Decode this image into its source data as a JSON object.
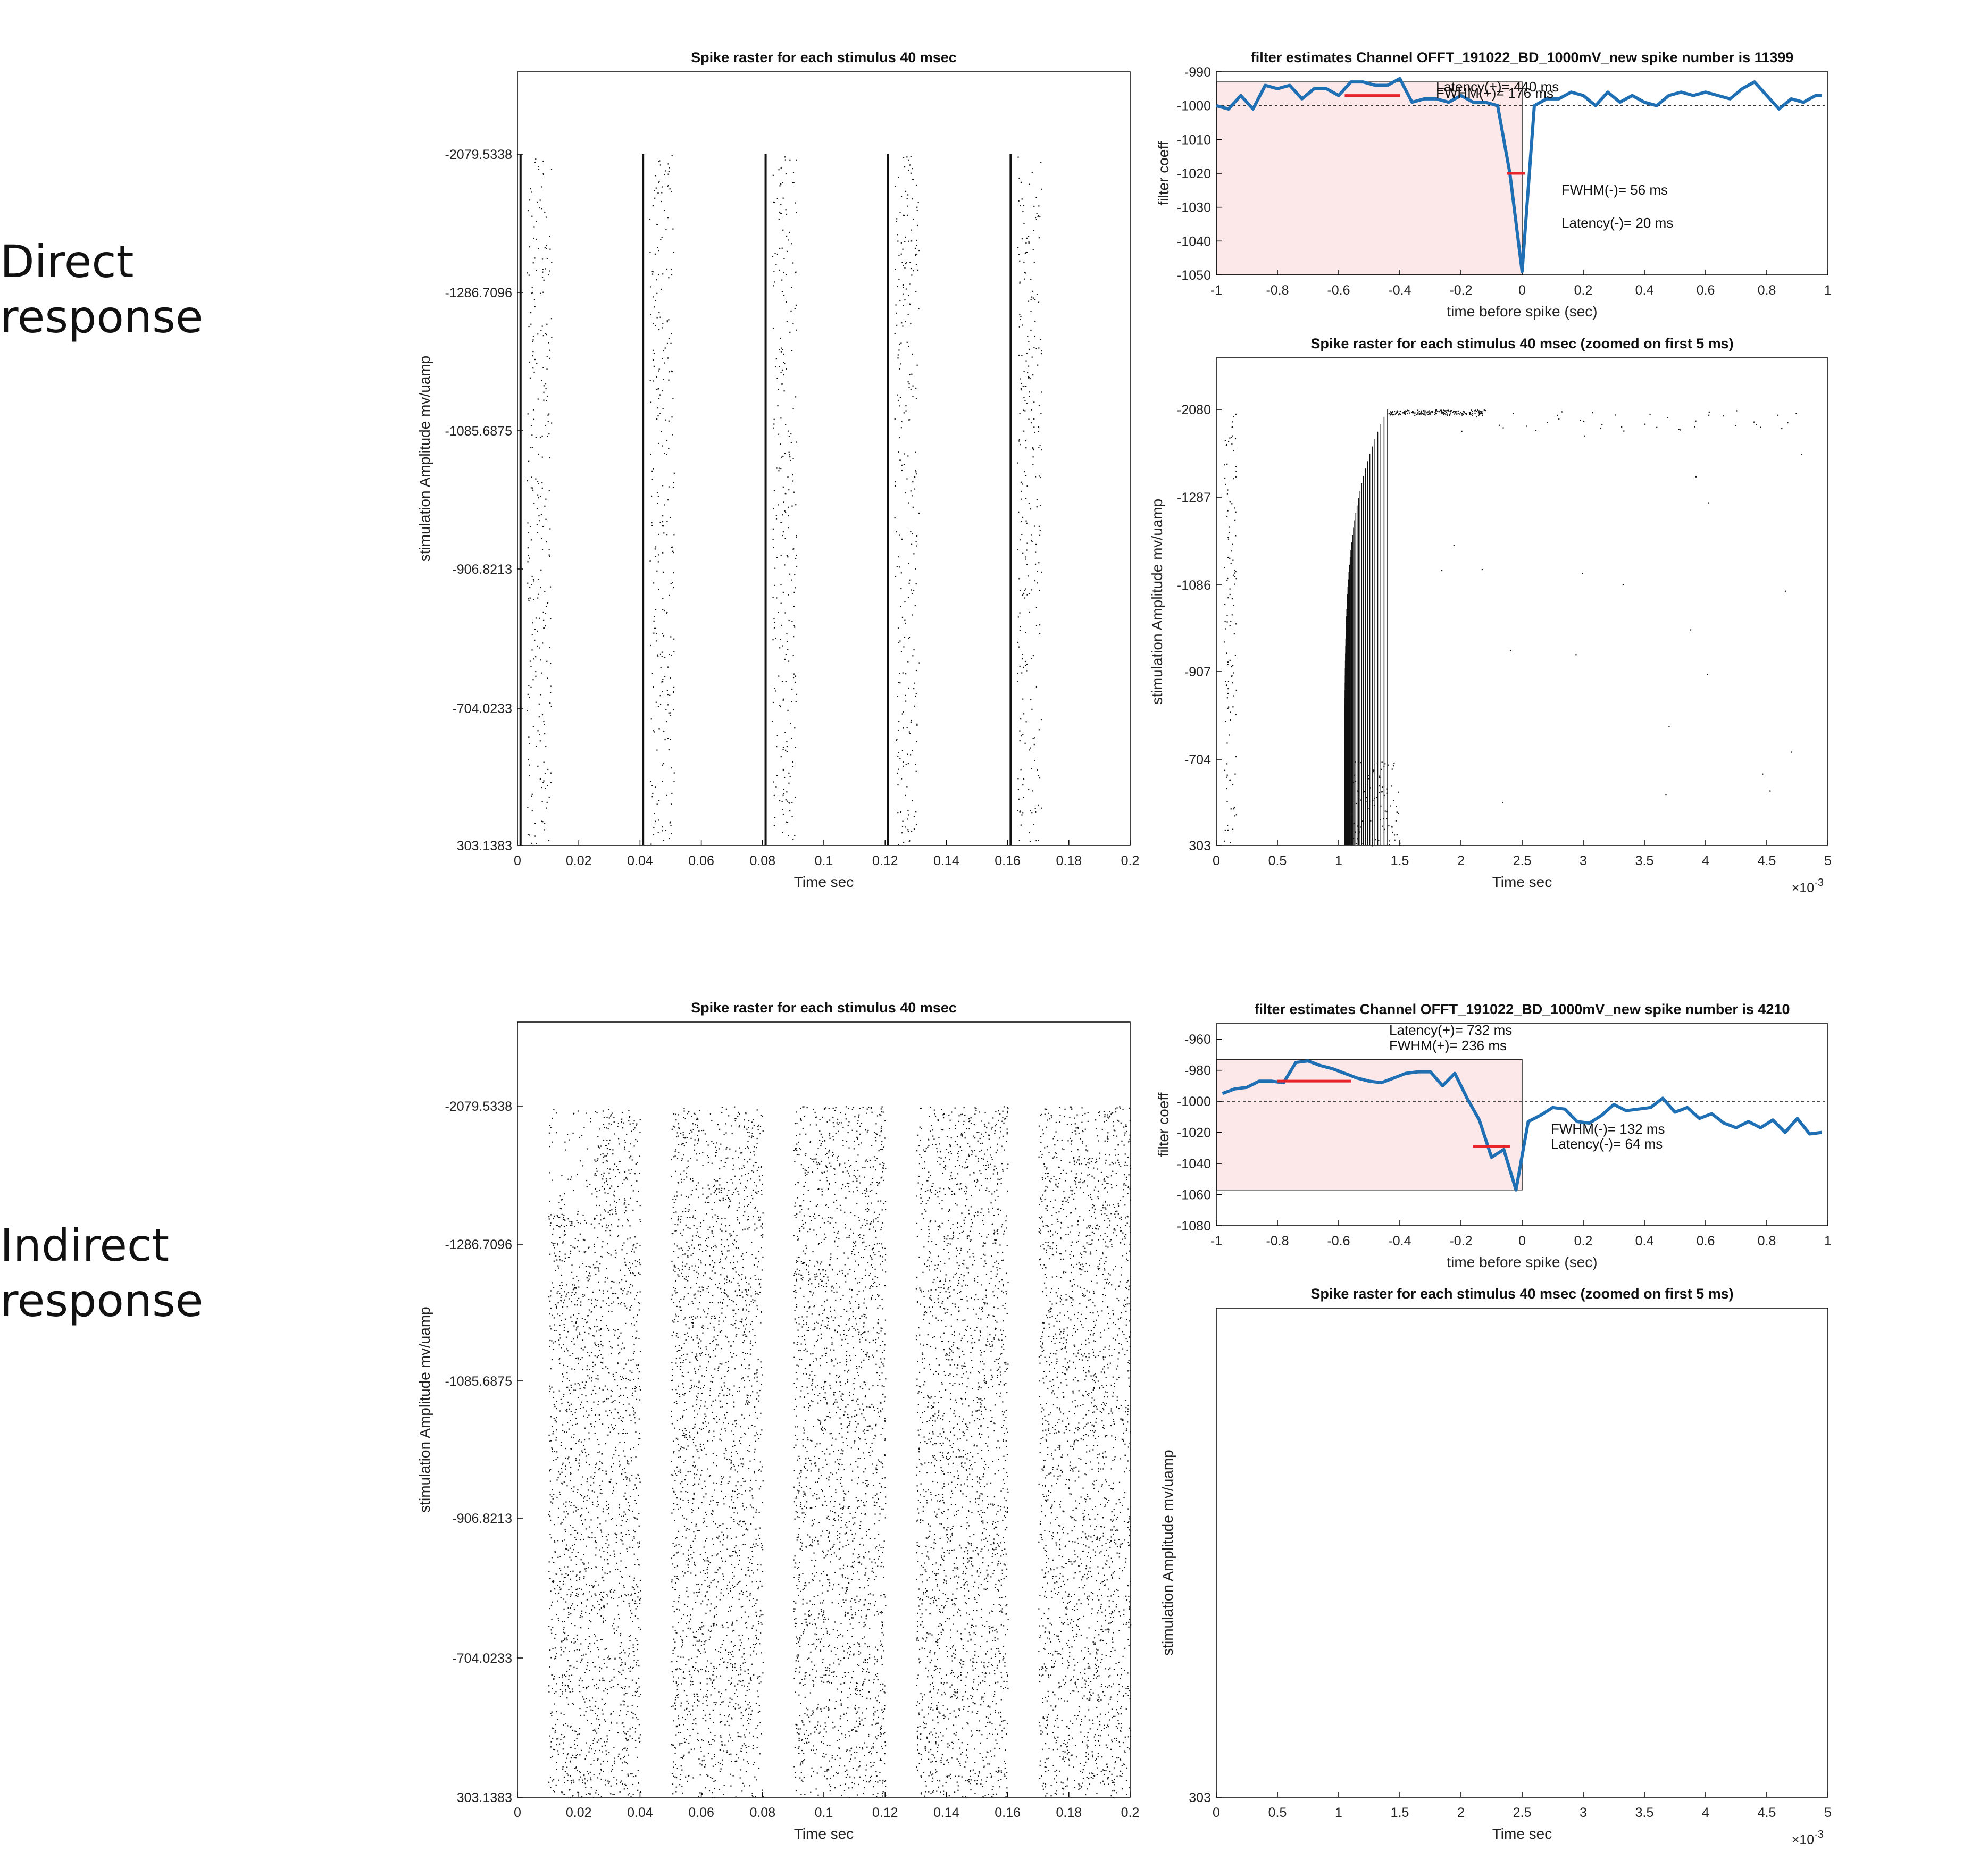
{
  "row_labels": {
    "direct": "Direct\nresponse",
    "indirect": "Indirect\nresponse"
  },
  "colors": {
    "filter_line": "#1f6fb4",
    "fwhm_bar": "#e8242b",
    "shade": "#fce8e8",
    "spike": "#111111"
  },
  "chart_data": [
    {
      "id": "direct-raster",
      "type": "scatter",
      "title": "Spike raster for each stimulus 40 msec",
      "xlabel": "Time sec",
      "ylabel": "stimulation Amplitude  mv/uamp",
      "xlim": [
        0,
        0.2
      ],
      "x_ticks": [
        0,
        0.02,
        0.04,
        0.06,
        0.08,
        0.1,
        0.12,
        0.14,
        0.16,
        0.18,
        0.2
      ],
      "x_tick_labels": [
        "0",
        "0.02",
        "0.04",
        "0.06",
        "0.08",
        "0.1",
        "0.12",
        "0.14",
        "0.16",
        "0.18",
        "0.2"
      ],
      "y_tick_labels": [
        "-2079.5338",
        "-1286.7096",
        "-1085.6875",
        "-906.8213",
        "-704.0233",
        "303.1383"
      ],
      "stimulus_onsets_sec": [
        0,
        0.04,
        0.08,
        0.12,
        0.16
      ],
      "response": "direct",
      "spike_latency_sec": 0.001
    },
    {
      "id": "direct-filter",
      "type": "line",
      "title": "filter estimates  Channel  OFFT_191022_BD_1000mV_new  spike number is 11399",
      "xlabel": "time before spike (sec)",
      "ylabel": "filter coeff",
      "xlim": [
        -1,
        1
      ],
      "ylim": [
        -1050,
        -990
      ],
      "x_ticks": [
        -1,
        -0.8,
        -0.6,
        -0.4,
        -0.2,
        0,
        0.2,
        0.4,
        0.6,
        0.8,
        1
      ],
      "x_tick_labels": [
        "-1",
        "-0.8",
        "-0.6",
        "-0.4",
        "-0.2",
        "0",
        "0.2",
        "0.4",
        "0.6",
        "0.8",
        "1"
      ],
      "y_ticks": [
        -990,
        -1000,
        -1010,
        -1020,
        -1030,
        -1040,
        -1050
      ],
      "y_tick_labels": [
        "-990",
        "-1000",
        "-1010",
        "-1020",
        "-1030",
        "-1040",
        "-1050"
      ],
      "baseline": -1000,
      "shade_x": [
        -1,
        0
      ],
      "shade_y": [
        -1050,
        -993
      ],
      "x": [
        -1,
        -0.96,
        -0.92,
        -0.88,
        -0.84,
        -0.8,
        -0.76,
        -0.72,
        -0.68,
        -0.64,
        -0.6,
        -0.56,
        -0.52,
        -0.48,
        -0.44,
        -0.4,
        -0.36,
        -0.32,
        -0.28,
        -0.24,
        -0.2,
        -0.16,
        -0.12,
        -0.08,
        -0.04,
        0,
        0.04,
        0.08,
        0.12,
        0.16,
        0.2,
        0.24,
        0.28,
        0.32,
        0.36,
        0.4,
        0.44,
        0.48,
        0.52,
        0.56,
        0.6,
        0.64,
        0.68,
        0.72,
        0.76,
        0.8,
        0.84,
        0.88,
        0.92,
        0.96,
        0.98
      ],
      "y": [
        -1000,
        -1001,
        -997,
        -1001,
        -994,
        -995,
        -994,
        -998,
        -995,
        -995,
        -997,
        -993,
        -993,
        -994,
        -994,
        -992,
        -999,
        -998,
        -998,
        -999,
        -997,
        -999,
        -999,
        -1000,
        -1020,
        -1049,
        -1000,
        -998,
        -998,
        -996,
        -997,
        -1000,
        -996,
        -999,
        -997,
        -999,
        -1000,
        -997,
        -996,
        -997,
        -996,
        -997,
        -998,
        -995,
        -993,
        -997,
        -1001,
        -998,
        -999,
        -997,
        -997
      ],
      "fwhm_pos": {
        "x": [
          -0.58,
          -0.4
        ],
        "y": -997
      },
      "fwhm_neg": {
        "x": [
          -0.05,
          0.01
        ],
        "y": -1020
      },
      "annotations": [
        "Latency(+)= 440 ms",
        "FWHM(+)= 176 ms",
        "FWHM(-)= 56 ms",
        "Latency(-)= 20 ms"
      ]
    },
    {
      "id": "direct-zoom",
      "type": "scatter",
      "title": "Spike raster for each stimulus 40 msec (zoomed on first 5 ms)",
      "xlabel": "Time sec",
      "ylabel": "stimulation Amplitude  mv/uamp",
      "xlim": [
        0,
        0.005
      ],
      "x_ticks": [
        0,
        0.0005,
        0.001,
        0.0015,
        0.002,
        0.0025,
        0.003,
        0.0035,
        0.004,
        0.0045,
        0.005
      ],
      "x_tick_labels": [
        "0",
        "0.5",
        "1",
        "1.5",
        "2",
        "2.5",
        "3",
        "3.5",
        "4",
        "4.5",
        "5"
      ],
      "x_exponent": "×10",
      "x_exponent_power": "-3",
      "y_tick_labels": [
        "-2080",
        "-1287",
        "-1086",
        "-907",
        "-704",
        "303"
      ],
      "onset_latency_sec": 0.00105
    },
    {
      "id": "indirect-raster",
      "type": "scatter",
      "title": "Spike raster for each stimulus 40 msec",
      "xlabel": "Time sec",
      "ylabel": "stimulation Amplitude  mv/uamp",
      "xlim": [
        0,
        0.2
      ],
      "x_ticks": [
        0,
        0.02,
        0.04,
        0.06,
        0.08,
        0.1,
        0.12,
        0.14,
        0.16,
        0.18,
        0.2
      ],
      "x_tick_labels": [
        "0",
        "0.02",
        "0.04",
        "0.06",
        "0.08",
        "0.1",
        "0.12",
        "0.14",
        "0.16",
        "0.18",
        "0.2"
      ],
      "y_tick_labels": [
        "-2079.5338",
        "-1286.7096",
        "-1085.6875",
        "-906.8213",
        "-704.0233",
        "303.1383"
      ],
      "stimulus_onsets_sec": [
        0,
        0.04,
        0.08,
        0.12,
        0.16
      ],
      "response": "indirect",
      "response_window_sec": [
        0.01,
        0.04
      ]
    },
    {
      "id": "indirect-filter",
      "type": "line",
      "title": "filter estimates  Channel  OFFT_191022_BD_1000mV_new  spike number is 4210",
      "xlabel": "time before spike (sec)",
      "ylabel": "filter coeff",
      "xlim": [
        -1,
        1
      ],
      "ylim": [
        -1080,
        -950
      ],
      "x_ticks": [
        -1,
        -0.8,
        -0.6,
        -0.4,
        -0.2,
        0,
        0.2,
        0.4,
        0.6,
        0.8,
        1
      ],
      "x_tick_labels": [
        "-1",
        "-0.8",
        "-0.6",
        "-0.4",
        "-0.2",
        "0",
        "0.2",
        "0.4",
        "0.6",
        "0.8",
        "1"
      ],
      "y_ticks": [
        -960,
        -980,
        -1000,
        -1020,
        -1040,
        -1060,
        -1080
      ],
      "y_tick_labels": [
        "-960",
        "-980",
        "-1000",
        "-1020",
        "-1040",
        "-1060",
        "-1080"
      ],
      "baseline": -1000,
      "shade_x": [
        -1,
        0
      ],
      "shade_y": [
        -1057,
        -973
      ],
      "x": [
        -0.98,
        -0.94,
        -0.9,
        -0.86,
        -0.82,
        -0.78,
        -0.74,
        -0.7,
        -0.66,
        -0.62,
        -0.58,
        -0.54,
        -0.5,
        -0.46,
        -0.42,
        -0.38,
        -0.34,
        -0.3,
        -0.26,
        -0.22,
        -0.18,
        -0.14,
        -0.1,
        -0.06,
        -0.02,
        0.02,
        0.06,
        0.1,
        0.14,
        0.18,
        0.22,
        0.26,
        0.3,
        0.34,
        0.38,
        0.42,
        0.46,
        0.5,
        0.54,
        0.58,
        0.62,
        0.66,
        0.7,
        0.74,
        0.78,
        0.82,
        0.86,
        0.9,
        0.94,
        0.98
      ],
      "y": [
        -995,
        -992,
        -991,
        -987,
        -987,
        -988,
        -975,
        -974,
        -977,
        -979,
        -982,
        -985,
        -987,
        -988,
        -985,
        -982,
        -981,
        -981,
        -990,
        -982,
        -998,
        -1012,
        -1036,
        -1031,
        -1057,
        -1013,
        -1009,
        -1004,
        -1005,
        -1013,
        -1014,
        -1009,
        -1002,
        -1006,
        -1005,
        -1004,
        -998,
        -1007,
        -1004,
        -1011,
        -1008,
        -1014,
        -1017,
        -1013,
        -1017,
        -1012,
        -1020,
        -1011,
        -1021,
        -1020
      ],
      "fwhm_pos": {
        "x": [
          -0.8,
          -0.56
        ],
        "y": -987
      },
      "fwhm_neg": {
        "x": [
          -0.16,
          -0.04
        ],
        "y": -1029
      },
      "annotations": [
        "Latency(+)= 732 ms",
        "FWHM(+)= 236 ms",
        "FWHM(-)= 132 ms",
        "Latency(-)= 64 ms"
      ]
    },
    {
      "id": "indirect-zoom",
      "type": "scatter",
      "title": "Spike raster for each stimulus 40 msec (zoomed on first 5 ms)",
      "xlabel": "Time sec",
      "ylabel": "stimulation Amplitude  mv/uamp",
      "xlim": [
        0,
        0.005
      ],
      "x_ticks": [
        0,
        0.0005,
        0.001,
        0.0015,
        0.002,
        0.0025,
        0.003,
        0.0035,
        0.004,
        0.0045,
        0.005
      ],
      "x_tick_labels": [
        "0",
        "0.5",
        "1",
        "1.5",
        "2",
        "2.5",
        "3",
        "3.5",
        "4",
        "4.5",
        "5"
      ],
      "x_exponent": "×10",
      "x_exponent_power": "-3",
      "y_tick_labels": [
        "303"
      ]
    }
  ]
}
